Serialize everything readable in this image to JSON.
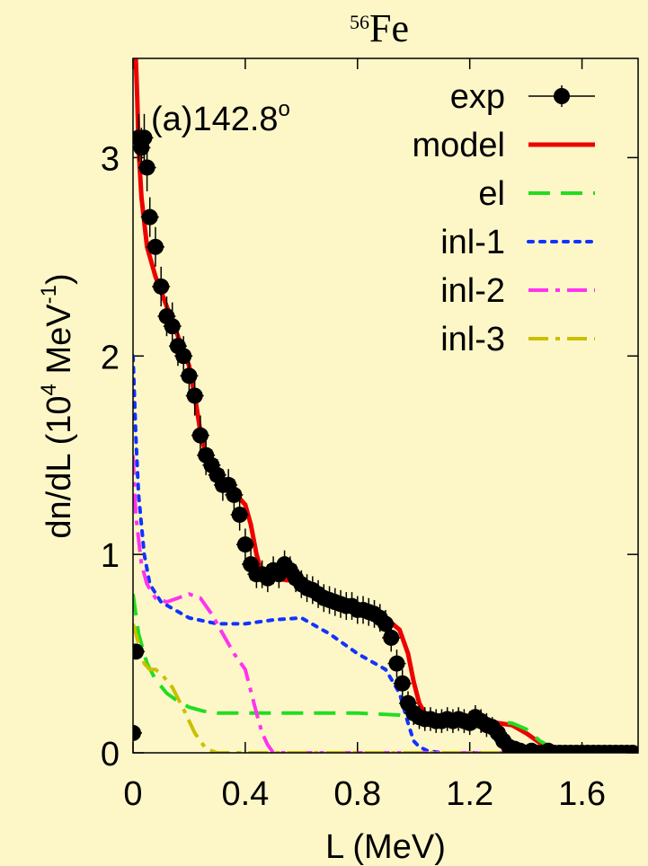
{
  "chart_data": {
    "type": "line",
    "title_superscript": "56",
    "title": "Fe",
    "annotation": "(a)142.8",
    "annotation_sup": "o",
    "xlabel": "L (MeV)",
    "ylabel_parts": {
      "a": "dn/dL (10",
      "exp": "4",
      "b": " MeV",
      "exp2": "-1",
      "c": ")"
    },
    "xlim": [
      0,
      1.8
    ],
    "ylim": [
      0,
      3.5
    ],
    "xticks": [
      0,
      0.4,
      0.8,
      1.2,
      1.6
    ],
    "xtick_labels": [
      "0",
      "0.4",
      "0.8",
      "1.2",
      "1.6"
    ],
    "yticks": [
      0,
      1,
      2,
      3
    ],
    "ytick_labels": [
      "0",
      "1",
      "2",
      "3"
    ],
    "legend_position": "top-right",
    "series": [
      {
        "name": "exp",
        "style": "points",
        "color": "#000000",
        "x": [
          0.0,
          0.01,
          0.02,
          0.03,
          0.04,
          0.05,
          0.06,
          0.08,
          0.1,
          0.12,
          0.14,
          0.16,
          0.18,
          0.2,
          0.22,
          0.24,
          0.26,
          0.28,
          0.3,
          0.32,
          0.34,
          0.36,
          0.38,
          0.4,
          0.42,
          0.44,
          0.46,
          0.48,
          0.5,
          0.52,
          0.54,
          0.56,
          0.58,
          0.6,
          0.62,
          0.64,
          0.66,
          0.68,
          0.7,
          0.72,
          0.74,
          0.76,
          0.78,
          0.8,
          0.82,
          0.84,
          0.86,
          0.88,
          0.9,
          0.92,
          0.94,
          0.96,
          0.98,
          1.0,
          1.02,
          1.04,
          1.06,
          1.08,
          1.1,
          1.12,
          1.14,
          1.16,
          1.18,
          1.2,
          1.22,
          1.24,
          1.26,
          1.28,
          1.3,
          1.32,
          1.34,
          1.36,
          1.38,
          1.4,
          1.42,
          1.44,
          1.46,
          1.48,
          1.5,
          1.52,
          1.54,
          1.56,
          1.58,
          1.6,
          1.62,
          1.64,
          1.66,
          1.68,
          1.7,
          1.72,
          1.74,
          1.76,
          1.78
        ],
        "y": [
          0.1,
          0.51,
          3.1,
          3.05,
          3.1,
          2.95,
          2.7,
          2.55,
          2.35,
          2.2,
          2.15,
          2.05,
          2.0,
          1.9,
          1.8,
          1.6,
          1.5,
          1.45,
          1.4,
          1.35,
          1.35,
          1.3,
          1.2,
          1.05,
          0.95,
          0.9,
          0.9,
          0.88,
          0.92,
          0.9,
          0.95,
          0.92,
          0.88,
          0.85,
          0.83,
          0.82,
          0.8,
          0.78,
          0.77,
          0.76,
          0.75,
          0.74,
          0.74,
          0.72,
          0.72,
          0.71,
          0.7,
          0.68,
          0.65,
          0.58,
          0.45,
          0.35,
          0.25,
          0.2,
          0.18,
          0.17,
          0.17,
          0.16,
          0.16,
          0.17,
          0.16,
          0.17,
          0.16,
          0.15,
          0.18,
          0.16,
          0.14,
          0.13,
          0.1,
          0.06,
          0.03,
          0.02,
          0.01,
          0.0,
          0.01,
          0.0,
          0.0,
          0.01,
          0.0,
          0.0,
          0.0,
          0.0,
          0.0,
          0.0,
          0.0,
          0.0,
          0.0,
          0.0,
          0.0,
          0.0,
          0.0,
          0.0,
          0.0
        ],
        "err": [
          0.03,
          0.03,
          0.12,
          0.1,
          0.12,
          0.12,
          0.1,
          0.1,
          0.1,
          0.1,
          0.12,
          0.1,
          0.1,
          0.1,
          0.1,
          0.1,
          0.1,
          0.08,
          0.08,
          0.08,
          0.08,
          0.08,
          0.08,
          0.08,
          0.08,
          0.07,
          0.07,
          0.07,
          0.07,
          0.07,
          0.07,
          0.07,
          0.07,
          0.07,
          0.07,
          0.07,
          0.07,
          0.07,
          0.07,
          0.07,
          0.07,
          0.07,
          0.07,
          0.07,
          0.07,
          0.07,
          0.07,
          0.07,
          0.07,
          0.07,
          0.07,
          0.07,
          0.06,
          0.06,
          0.06,
          0.06,
          0.06,
          0.06,
          0.06,
          0.06,
          0.06,
          0.06,
          0.06,
          0.06,
          0.06,
          0.06,
          0.06,
          0.05,
          0.05,
          0.05,
          0.04,
          0.03,
          0.03,
          0.03,
          0.03,
          0.03,
          0.03,
          0.03,
          0.03,
          0.03,
          0.03,
          0.03,
          0.03,
          0.03,
          0.03,
          0.03,
          0.03,
          0.03,
          0.03,
          0.03,
          0.03,
          0.03,
          0.03
        ]
      },
      {
        "name": "model",
        "style": "solid",
        "color": "#ee0000",
        "x": [
          0.01,
          0.015,
          0.02,
          0.03,
          0.05,
          0.08,
          0.12,
          0.16,
          0.2,
          0.22,
          0.24,
          0.26,
          0.3,
          0.35,
          0.4,
          0.42,
          0.44,
          0.46,
          0.48,
          0.5,
          0.55,
          0.6,
          0.65,
          0.7,
          0.75,
          0.8,
          0.85,
          0.9,
          0.95,
          0.98,
          1.0,
          1.02,
          1.04,
          1.06,
          1.1,
          1.2,
          1.3,
          1.35,
          1.4,
          1.45,
          1.48,
          1.5,
          1.55,
          1.6,
          1.7,
          1.8
        ],
        "y": [
          3.5,
          3.3,
          3.05,
          2.8,
          2.55,
          2.4,
          2.25,
          2.1,
          1.95,
          1.8,
          1.62,
          1.5,
          1.4,
          1.33,
          1.25,
          1.15,
          1.0,
          0.9,
          0.88,
          0.88,
          0.87,
          0.87,
          0.82,
          0.78,
          0.75,
          0.72,
          0.71,
          0.68,
          0.62,
          0.5,
          0.36,
          0.25,
          0.2,
          0.18,
          0.17,
          0.16,
          0.15,
          0.14,
          0.1,
          0.05,
          0.02,
          0.01,
          0.0,
          0.0,
          0.0,
          0.0
        ]
      },
      {
        "name": "el",
        "style": "dash",
        "color": "#22dd22",
        "x": [
          0.0,
          0.01,
          0.02,
          0.05,
          0.08,
          0.12,
          0.16,
          0.2,
          0.25,
          0.3,
          0.4,
          0.6,
          0.8,
          0.95,
          1.0,
          1.05,
          1.2,
          1.35,
          1.4,
          1.45,
          1.5,
          1.55,
          1.8
        ],
        "y": [
          0.8,
          0.7,
          0.6,
          0.45,
          0.37,
          0.3,
          0.26,
          0.23,
          0.21,
          0.2,
          0.2,
          0.2,
          0.2,
          0.19,
          0.18,
          0.17,
          0.16,
          0.15,
          0.12,
          0.06,
          0.02,
          0.0,
          0.0
        ]
      },
      {
        "name": "inl-1",
        "style": "dot",
        "color": "#1133ff",
        "x": [
          0.0,
          0.01,
          0.02,
          0.04,
          0.06,
          0.1,
          0.15,
          0.2,
          0.3,
          0.4,
          0.5,
          0.6,
          0.7,
          0.8,
          0.9,
          0.95,
          0.98,
          1.0,
          1.02,
          1.05,
          1.1,
          1.2,
          1.4,
          1.6,
          1.8
        ],
        "y": [
          2.0,
          1.6,
          1.3,
          1.0,
          0.85,
          0.76,
          0.72,
          0.68,
          0.65,
          0.65,
          0.67,
          0.68,
          0.6,
          0.5,
          0.42,
          0.3,
          0.15,
          0.06,
          0.03,
          0.01,
          0.0,
          0.0,
          0.0,
          0.0,
          0.0
        ]
      },
      {
        "name": "inl-2",
        "style": "dashdot",
        "color": "#ff33ee",
        "x": [
          0.0,
          0.01,
          0.03,
          0.05,
          0.08,
          0.12,
          0.16,
          0.2,
          0.24,
          0.28,
          0.32,
          0.36,
          0.4,
          0.44,
          0.46,
          0.48,
          0.5,
          0.55,
          0.7,
          1.0,
          1.8
        ],
        "y": [
          1.5,
          1.2,
          0.95,
          0.85,
          0.78,
          0.76,
          0.78,
          0.8,
          0.78,
          0.7,
          0.6,
          0.5,
          0.42,
          0.2,
          0.1,
          0.04,
          0.0,
          0.0,
          0.0,
          0.0,
          0.0
        ]
      },
      {
        "name": "inl-3",
        "style": "dashdot",
        "color": "#c8c000",
        "x": [
          0.0,
          0.02,
          0.04,
          0.06,
          0.08,
          0.1,
          0.14,
          0.18,
          0.22,
          0.26,
          0.3,
          0.35,
          0.5,
          1.0,
          1.8
        ],
        "y": [
          0.65,
          0.55,
          0.45,
          0.42,
          0.42,
          0.4,
          0.33,
          0.22,
          0.1,
          0.02,
          0.0,
          0.0,
          0.0,
          0.0,
          0.0
        ]
      }
    ]
  }
}
